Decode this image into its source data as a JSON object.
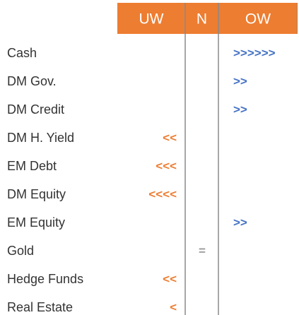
{
  "header": {
    "columns": [
      "UW",
      "N",
      "OW"
    ]
  },
  "colors": {
    "header": "#ED7D31",
    "UW": "#ED7D31",
    "N": "#999999",
    "OW": "#4472C4"
  },
  "rows": [
    {
      "label": "Cash",
      "signal": ">>>>>>",
      "column": "OW"
    },
    {
      "label": "DM Gov.",
      "signal": ">>",
      "column": "OW"
    },
    {
      "label": "DM Credit",
      "signal": ">>",
      "column": "OW"
    },
    {
      "label": "DM H. Yield",
      "signal": "<<",
      "column": "UW"
    },
    {
      "label": "EM Debt",
      "signal": "<<<",
      "column": "UW"
    },
    {
      "label": "DM Equity",
      "signal": "<<<<",
      "column": "UW"
    },
    {
      "label": "EM Equity",
      "signal": ">>",
      "column": "OW"
    },
    {
      "label": "Gold",
      "signal": "=",
      "column": "N"
    },
    {
      "label": "Hedge Funds",
      "signal": "<<",
      "column": "UW"
    },
    {
      "label": "Real Estate",
      "signal": "<",
      "column": "UW"
    }
  ]
}
